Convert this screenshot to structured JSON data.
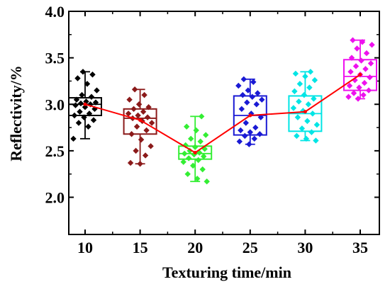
{
  "chart_data": {
    "type": "box",
    "xlabel": "Texturing time/min",
    "ylabel": "Reflectivity/%",
    "ylim": [
      1.6,
      4.0
    ],
    "yticks": [
      "2.0",
      "2.5",
      "3.0",
      "3.5",
      "4.0"
    ],
    "mean_line_color": "#ff0000",
    "categories": [
      "10",
      "15",
      "20",
      "25",
      "30",
      "35"
    ],
    "series": [
      {
        "color": "#000000",
        "box": {
          "q1": 2.88,
          "median": 3.0,
          "q3": 3.07,
          "whisker_low": 2.63,
          "whisker_high": 3.35
        },
        "mean": 3.0,
        "points": [
          2.63,
          2.76,
          2.8,
          2.83,
          2.86,
          2.88,
          2.9,
          2.92,
          2.95,
          2.97,
          2.99,
          3.0,
          3.01,
          3.02,
          3.03,
          3.05,
          3.08,
          3.1,
          3.15,
          3.22,
          3.28,
          3.32,
          3.35
        ]
      },
      {
        "color": "#8b1a1a",
        "box": {
          "q1": 2.68,
          "median": 2.85,
          "q3": 2.95,
          "whisker_low": 2.36,
          "whisker_high": 3.16
        },
        "mean": 2.83,
        "points": [
          2.36,
          2.37,
          2.45,
          2.5,
          2.55,
          2.62,
          2.68,
          2.72,
          2.76,
          2.8,
          2.82,
          2.85,
          2.86,
          2.88,
          2.9,
          2.92,
          2.95,
          2.97,
          3.0,
          3.05,
          3.1,
          3.16
        ]
      },
      {
        "color": "#33ee33",
        "box": {
          "q1": 2.41,
          "median": 2.47,
          "q3": 2.55,
          "whisker_low": 2.17,
          "whisker_high": 2.87
        },
        "mean": 2.48,
        "points": [
          2.17,
          2.2,
          2.25,
          2.3,
          2.34,
          2.38,
          2.4,
          2.42,
          2.44,
          2.46,
          2.47,
          2.48,
          2.5,
          2.52,
          2.54,
          2.56,
          2.6,
          2.63,
          2.67,
          2.72,
          2.76,
          2.87
        ]
      },
      {
        "color": "#1a1ad4",
        "box": {
          "q1": 2.67,
          "median": 2.88,
          "q3": 3.09,
          "whisker_low": 2.57,
          "whisker_high": 3.27
        },
        "mean": 2.88,
        "points": [
          2.57,
          2.6,
          2.63,
          2.66,
          2.68,
          2.7,
          2.72,
          2.75,
          2.8,
          2.86,
          2.9,
          2.95,
          3.0,
          3.02,
          3.05,
          3.08,
          3.1,
          3.12,
          3.15,
          3.2,
          3.24,
          3.27
        ]
      },
      {
        "color": "#00e5e5",
        "box": {
          "q1": 2.71,
          "median": 2.9,
          "q3": 3.09,
          "whisker_low": 2.61,
          "whisker_high": 3.35
        },
        "mean": 2.92,
        "points": [
          2.61,
          2.63,
          2.66,
          2.7,
          2.74,
          2.78,
          2.82,
          2.86,
          2.9,
          2.93,
          2.96,
          3.0,
          3.03,
          3.06,
          3.1,
          3.14,
          3.18,
          3.22,
          3.26,
          3.3,
          3.33,
          3.35
        ]
      },
      {
        "color": "#ee11ee",
        "box": {
          "q1": 3.15,
          "median": 3.3,
          "q3": 3.48,
          "whisker_low": 3.06,
          "whisker_high": 3.69
        },
        "mean": 3.32,
        "points": [
          3.06,
          3.08,
          3.1,
          3.12,
          3.15,
          3.18,
          3.2,
          3.23,
          3.26,
          3.29,
          3.32,
          3.35,
          3.38,
          3.41,
          3.44,
          3.47,
          3.5,
          3.55,
          3.6,
          3.64,
          3.67,
          3.69
        ]
      }
    ]
  }
}
